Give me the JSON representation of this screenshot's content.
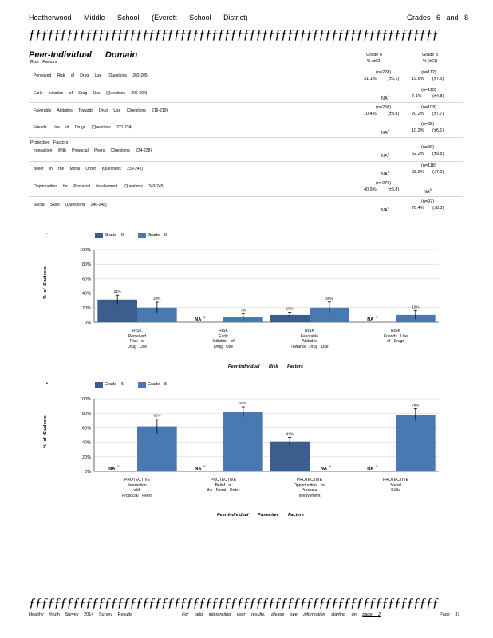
{
  "header": {
    "school": "Heatherwood Middle School (Everett School District)",
    "grades": "Grades 6 and 8",
    "rule": "ƒƒƒƒƒƒƒƒƒƒƒƒƒƒƒƒƒƒƒƒƒƒƒƒƒƒƒƒƒƒƒƒƒƒƒƒƒƒƒƒƒƒƒƒƒƒƒƒƒƒƒƒƒƒƒƒƒƒƒƒƒƒƒƒƒ"
  },
  "section": {
    "title": "Peer-Individual Domain",
    "col6": {
      "grade": "Grade 6",
      "unit": "% (±CI)"
    },
    "col8": {
      "grade": "Grade 8",
      "unit": "% (±CI)"
    },
    "risk_label": "Risk Factors",
    "protective_label": "Protective Factors",
    "rows": [
      {
        "label": "Perceived Risk of Drug Use (Questions 202-205)",
        "g6_n": "(n=228)",
        "g6_v": "31.1%",
        "g6_ci": "(±6.1)",
        "g8_n": "(n=112)",
        "g8_v": "19.6%",
        "g8_ci": "(±7.5)"
      },
      {
        "label": "Early Initiation of Drug Use (Questions 206-209)",
        "g6_n": "",
        "g6_v": "NA",
        "g6_ci": "",
        "g8_n": "(n=113)",
        "g8_v": "7.1%",
        "g8_ci": "(±4.8)"
      },
      {
        "label": "Favorable Attitudes Towards Drug Use (Questions 216-219)",
        "g6_n": "(n=250)",
        "g6_v": "10.4%",
        "g6_ci": "(±3.8)",
        "g8_n": "(n=109)",
        "g8_v": "20.2%",
        "g8_ci": "(±7.7)"
      },
      {
        "label": "Friends Use of Drugs (Questions 221-224)",
        "g6_n": "",
        "g6_v": "NA",
        "g6_ci": "",
        "g8_n": "(n=98)",
        "g8_v": "10.2%",
        "g8_ci": "(±6.1)"
      },
      {
        "label": "Interaction With Prosocial Peers (Questions 234-238)",
        "g6_n": "",
        "g6_v": "NA",
        "g6_ci": "",
        "g8_n": "(n=98)",
        "g8_v": "62.2%",
        "g8_ci": "(±9.8)"
      },
      {
        "label": "Belief in the Moral Order (Questions 239-242)",
        "g6_n": "",
        "g6_v": "NA",
        "g6_ci": "",
        "g8_n": "(n=118)",
        "g8_v": "82.2%",
        "g8_ci": "(±7.0)"
      },
      {
        "label": "Opportunities for Prosocial Involvement (Questions 243-245)",
        "g6_n": "(n=276)",
        "g6_v": "40.9%",
        "g6_ci": "(±5.8)",
        "g8_n": "",
        "g8_v": "NA",
        "g8_ci": ""
      },
      {
        "label": "Social Skills (Questions 246-248)",
        "g6_n": "",
        "g6_v": "NA",
        "g6_ci": "",
        "g8_n": "(n=97)",
        "g8_v": "78.4%",
        "g8_ci": "(±8.3)"
      }
    ],
    "na_sup": "5"
  },
  "colors": {
    "grade6": "#3a5f8f",
    "grade8": "#4a78b0",
    "rule": "#cfd8e3"
  },
  "chart_data": [
    {
      "type": "bar",
      "title": "Peer-Individual Risk Factors",
      "ylabel": "% of Students",
      "ylim": [
        0,
        100
      ],
      "yticks": [
        "0%",
        "20%",
        "40%",
        "60%",
        "80%",
        "100%"
      ],
      "legend": [
        "Grade 6",
        "Grade 8"
      ],
      "legend_placement": "top-left",
      "categories": [
        [
          "RISK",
          "Perceived",
          "Risk of",
          "Drug Use"
        ],
        [
          "RISK",
          "Early",
          "Initiation of",
          "Drug Use"
        ],
        [
          "RISK",
          "Favorable",
          "Attitudes",
          "Towards Drug Use"
        ],
        [
          "RISK",
          "Friends Use",
          "of Drugs"
        ]
      ],
      "series": [
        {
          "name": "Grade 6",
          "values": [
            31,
            null,
            10,
            null
          ],
          "ci": [
            6.1,
            null,
            3.8,
            null
          ],
          "labels": [
            "31%",
            "NA",
            "10%",
            "NA"
          ]
        },
        {
          "name": "Grade 8",
          "values": [
            20,
            7,
            20,
            10
          ],
          "ci": [
            7.5,
            4.8,
            7.7,
            6.1
          ],
          "labels": [
            "20%",
            "7%",
            "20%",
            "10%"
          ]
        }
      ]
    },
    {
      "type": "bar",
      "title": "Peer-Individual Protective Factors",
      "ylabel": "% of Students",
      "ylim": [
        0,
        100
      ],
      "yticks": [
        "0%",
        "20%",
        "40%",
        "60%",
        "80%",
        "100%"
      ],
      "legend": [
        "Grade 6",
        "Grade 8"
      ],
      "legend_placement": "top-left",
      "categories": [
        [
          "PROTECTIVE",
          "Interaction",
          "with",
          "Prosocial Peers"
        ],
        [
          "PROTECTIVE",
          "Belief in",
          "the Moral Order"
        ],
        [
          "PROTECTIVE",
          "Opportunities for",
          "Prosocial",
          "Involvement"
        ],
        [
          "PROTECTIVE",
          "Social",
          "Skills"
        ]
      ],
      "series": [
        {
          "name": "Grade 6",
          "values": [
            null,
            null,
            41,
            null
          ],
          "ci": [
            null,
            null,
            5.8,
            null
          ],
          "labels": [
            "NA",
            "NA",
            "41%",
            "NA"
          ]
        },
        {
          "name": "Grade 8",
          "values": [
            62,
            82,
            null,
            78
          ],
          "ci": [
            9.8,
            7.0,
            null,
            8.3
          ],
          "labels": [
            "62%",
            "82%",
            "NA",
            "78%"
          ]
        }
      ]
    }
  ],
  "footer": {
    "left": "Healthy Youth Survey 2014 Survey Results",
    "middle": "For help interpreting your results, please see information starting on",
    "link": "page 2",
    "right": "Page 37"
  }
}
